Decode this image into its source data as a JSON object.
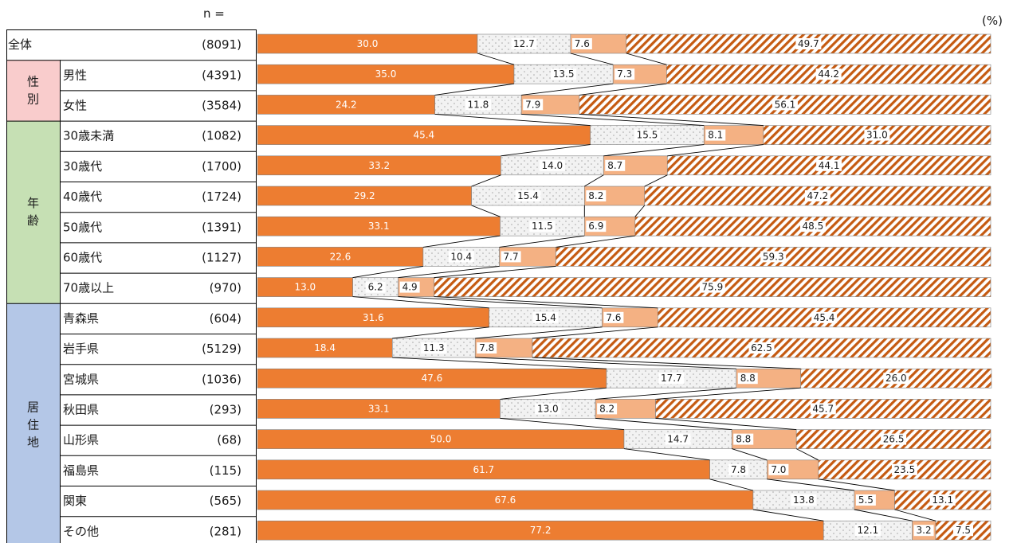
{
  "header": {
    "n_label": "n =",
    "unit": "(%)"
  },
  "colors": {
    "seg1": "#ED7D31",
    "seg2_bg": "#F2F2F2",
    "seg2_dot": "#A6A6A6",
    "seg3": "#F4B183",
    "seg4_stripe": "#C55A11",
    "group_sex": "#F9CCCC",
    "group_age": "#C6E0B4",
    "group_region": "#B4C7E7"
  },
  "groups": [
    {
      "name": "性別",
      "chars": [
        "性",
        "別"
      ],
      "rows": [
        1,
        2
      ],
      "color_key": "group_sex"
    },
    {
      "name": "年齢",
      "chars": [
        "年",
        "齢"
      ],
      "rows": [
        3,
        8
      ],
      "color_key": "group_age"
    },
    {
      "name": "居住地",
      "chars": [
        "居",
        "住",
        "地"
      ],
      "rows": [
        9,
        16
      ],
      "color_key": "group_region"
    }
  ],
  "chart_data": {
    "type": "bar",
    "orientation": "horizontal",
    "stacked": "100%",
    "categories": [
      "全体",
      "男性",
      "女性",
      "30歳未満",
      "30歳代",
      "40歳代",
      "50歳代",
      "60歳代",
      "70歳以上",
      "青森県",
      "岩手県",
      "宮城県",
      "秋田県",
      "山形県",
      "福島県",
      "関東",
      "その他"
    ],
    "n": [
      "(8091)",
      "(4391)",
      "(3584)",
      "(1082)",
      "(1700)",
      "(1724)",
      "(1391)",
      "(1127)",
      "(970)",
      "(604)",
      "(5129)",
      "(1036)",
      "(293)",
      "(68)",
      "(115)",
      "(565)",
      "(281)"
    ],
    "series": [
      {
        "values": [
          30.0,
          35.0,
          24.2,
          45.4,
          33.2,
          29.2,
          33.1,
          22.6,
          13.0,
          31.6,
          18.4,
          47.6,
          33.1,
          50.0,
          61.7,
          67.6,
          77.2
        ]
      },
      {
        "values": [
          12.7,
          13.5,
          11.8,
          15.5,
          14.0,
          15.4,
          11.5,
          10.4,
          6.2,
          15.4,
          11.3,
          17.7,
          13.0,
          14.7,
          7.8,
          13.8,
          12.1
        ]
      },
      {
        "values": [
          7.6,
          7.3,
          7.9,
          8.1,
          8.7,
          8.2,
          6.9,
          7.7,
          4.9,
          7.6,
          7.8,
          8.8,
          8.2,
          8.8,
          7.0,
          5.5,
          3.2
        ]
      },
      {
        "values": [
          49.7,
          44.2,
          56.1,
          31.0,
          44.1,
          47.2,
          48.5,
          59.3,
          75.9,
          45.4,
          62.5,
          26.0,
          45.7,
          26.5,
          23.5,
          13.1,
          7.5
        ]
      }
    ],
    "xlim": [
      0,
      100
    ],
    "legend": "none",
    "grid": false
  }
}
